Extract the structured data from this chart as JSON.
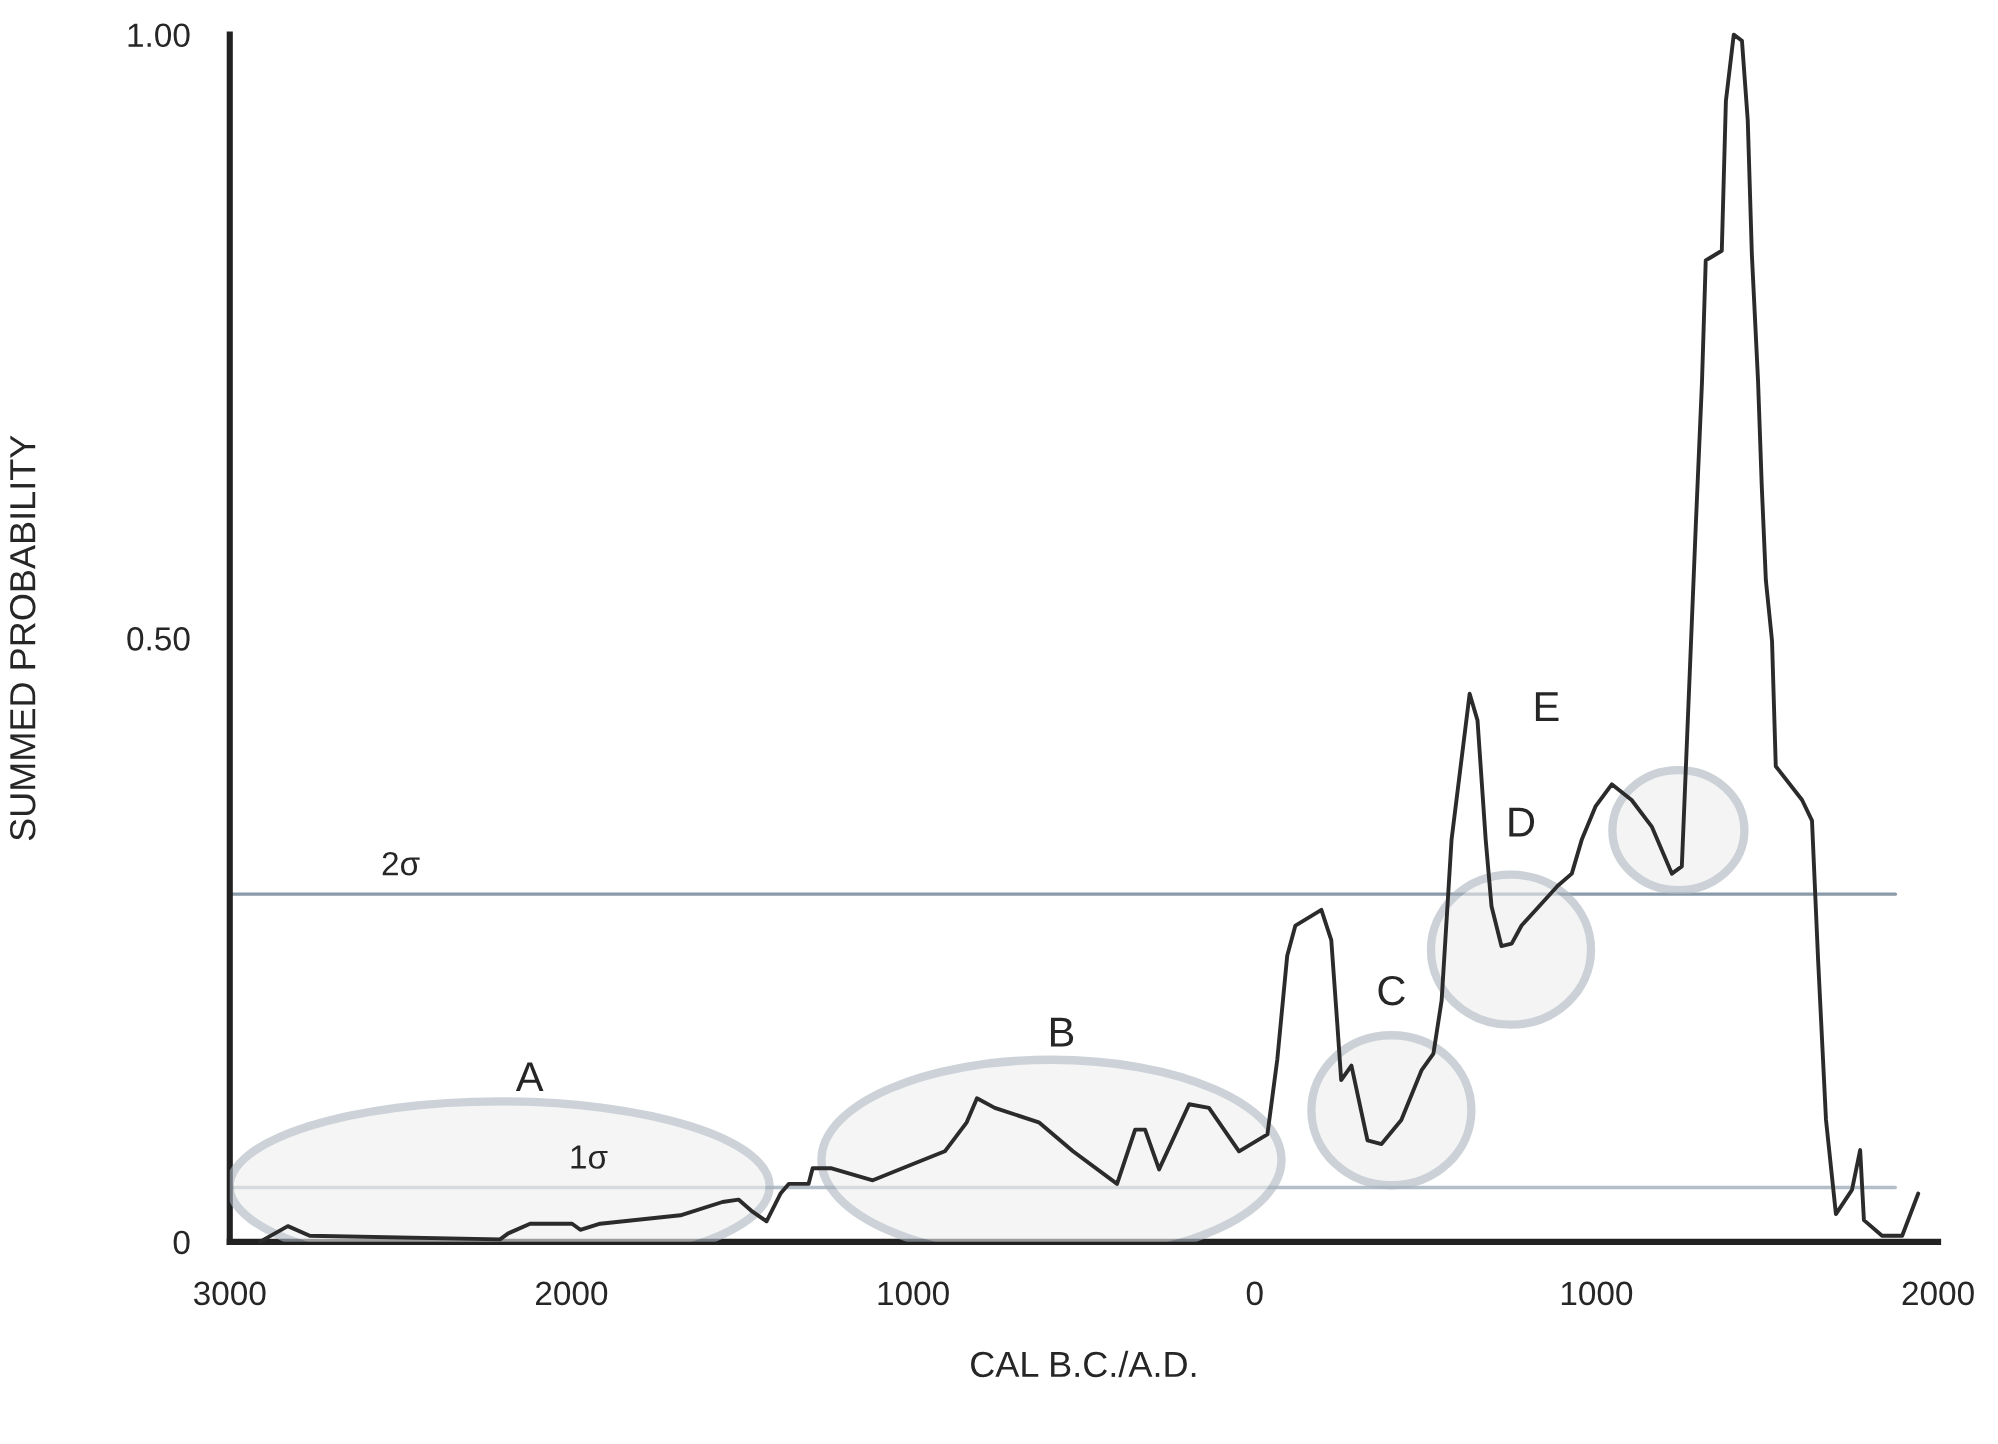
{
  "chart_data": {
    "type": "line",
    "xlabel": "CAL B.C./A.D.",
    "ylabel": "SUMMED PROBABILITY",
    "x": [
      -2912,
      -2830,
      -2766,
      -2209,
      -2185,
      -2121,
      -1998,
      -1974,
      -1916,
      -1681,
      -1558,
      -1511,
      -1470,
      -1429,
      -1388,
      -1364,
      -1306,
      -1294,
      -1241,
      -1118,
      -1013,
      -907,
      -843,
      -813,
      -761,
      -632,
      -532,
      -403,
      -350,
      -321,
      -280,
      -192,
      -134,
      -46,
      37,
      66,
      95,
      119,
      195,
      224,
      242,
      253,
      283,
      330,
      371,
      429,
      488,
      523,
      547,
      576,
      629,
      652,
      676,
      693,
      722,
      752,
      781,
      887,
      928,
      957,
      998,
      1045,
      1103,
      1162,
      1221,
      1250,
      1291,
      1309,
      1320,
      1338,
      1367,
      1379,
      1402,
      1426,
      1443,
      1455,
      1473,
      1484,
      1496,
      1514,
      1525,
      1602,
      1631,
      1649,
      1672,
      1701,
      1748,
      1772,
      1783,
      1836,
      1895,
      1942
    ],
    "series": [
      {
        "color": "#2b2b2b",
        "values": [
          0,
          0.013,
          0.005,
          0.002,
          0.007,
          0.015,
          0.015,
          0.01,
          0.015,
          0.022,
          0.033,
          0.035,
          0.025,
          0.017,
          0.04,
          0.048,
          0.048,
          0.061,
          0.061,
          0.051,
          0.063,
          0.075,
          0.099,
          0.119,
          0.111,
          0.099,
          0.075,
          0.048,
          0.093,
          0.093,
          0.06,
          0.114,
          0.111,
          0.075,
          0.089,
          0.151,
          0.237,
          0.262,
          0.275,
          0.25,
          0.179,
          0.134,
          0.146,
          0.084,
          0.081,
          0.101,
          0.142,
          0.156,
          0.2,
          0.333,
          0.454,
          0.432,
          0.333,
          0.278,
          0.245,
          0.247,
          0.262,
          0.295,
          0.305,
          0.333,
          0.361,
          0.379,
          0.366,
          0.344,
          0.305,
          0.311,
          0.594,
          0.712,
          0.813,
          0.816,
          0.821,
          0.945,
          1.0,
          0.995,
          0.929,
          0.818,
          0.714,
          0.626,
          0.548,
          0.498,
          0.394,
          0.366,
          0.349,
          0.233,
          0.101,
          0.023,
          0.043,
          0.076,
          0.018,
          0.005,
          0.005,
          0.04
        ]
      }
    ],
    "xlim": [
      -3000,
      2000
    ],
    "xticks": [
      {
        "value": -3000,
        "label": "3000"
      },
      {
        "value": -2000,
        "label": "2000"
      },
      {
        "value": -1000,
        "label": "1000"
      },
      0,
      1000,
      2000
    ],
    "ylim": [
      0,
      1.0
    ],
    "yticks": [
      0,
      {
        "value": 0.5,
        "label": "0.50"
      },
      {
        "value": 1.0,
        "label": "1.00"
      }
    ],
    "ref_lines": [
      {
        "axis": "y",
        "value": 0.288,
        "label": "2σ",
        "color": "#8a9aa8"
      },
      {
        "axis": "y",
        "value": 0.045,
        "label": "1σ",
        "color": "#b4bec8"
      }
    ],
    "annotations": [
      "A",
      "B",
      "C",
      "D",
      "E"
    ],
    "grid": false,
    "legend": false,
    "marker": "none",
    "line_style": "solid"
  }
}
